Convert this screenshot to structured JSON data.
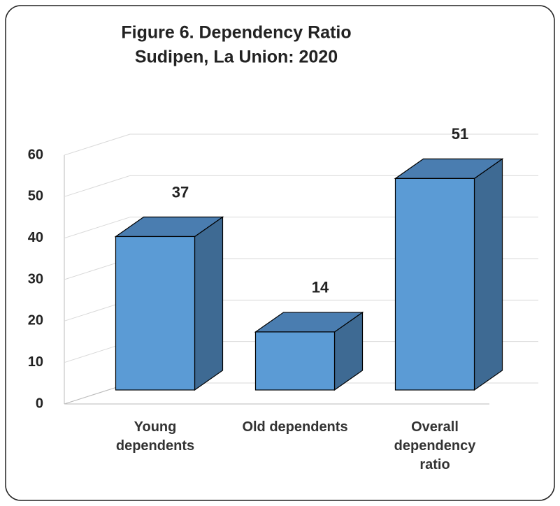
{
  "chart_data": {
    "type": "bar3d",
    "title": [
      "Figure 6. Dependency Ratio",
      "Sudipen, La Union: 2020"
    ],
    "categories": [
      "Young dependents",
      "Old dependents",
      "Overall dependency ratio"
    ],
    "values": [
      37,
      14,
      51
    ],
    "color": "#5b9bd5",
    "ylim": [
      0,
      60
    ],
    "yticks": [
      0,
      10,
      20,
      30,
      40,
      50,
      60
    ],
    "grid": true
  }
}
